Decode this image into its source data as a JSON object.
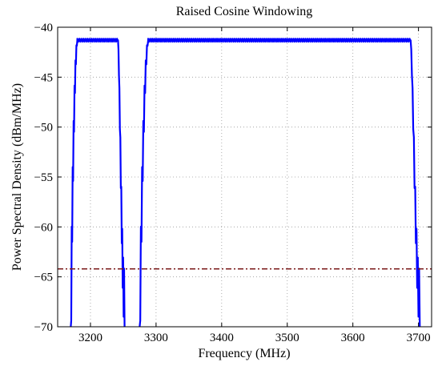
{
  "chart_data": {
    "type": "line",
    "title": "Raised Cosine Windowing",
    "xlabel": "Frequency (MHz)",
    "ylabel": "Power Spectral Density (dBm/MHz)",
    "xlim": [
      3150,
      3720
    ],
    "ylim": [
      -70,
      -40
    ],
    "xticks": [
      3200,
      3300,
      3400,
      3500,
      3600,
      3700
    ],
    "yticks": [
      -70,
      -65,
      -60,
      -55,
      -50,
      -45,
      -40
    ],
    "xtick_labels": [
      "3200",
      "3300",
      "3400",
      "3500",
      "3600",
      "3700"
    ],
    "ytick_labels": [
      "−70",
      "−65",
      "−60",
      "−55",
      "−50",
      "−45",
      "−40"
    ],
    "grid": true,
    "series": [
      {
        "color": "#0000ff",
        "style": "solid",
        "bands": [
          {
            "x_start": 3170,
            "flat_start": 3180,
            "flat_end": 3242,
            "x_end": 3252,
            "level": -41.3
          },
          {
            "x_start": 3275,
            "flat_start": 3288,
            "flat_end": 3688,
            "x_end": 3702,
            "level": -41.3
          }
        ],
        "floor": -70
      },
      {
        "color": "#7a1a1a",
        "style": "dash-dot",
        "x": [
          3150,
          3720
        ],
        "y": [
          -64.2,
          -64.2
        ]
      }
    ]
  }
}
